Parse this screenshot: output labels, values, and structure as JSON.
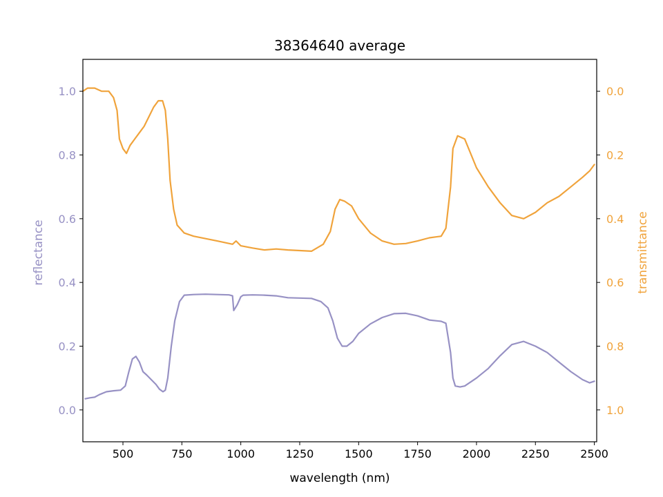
{
  "chart_data": {
    "type": "line",
    "title": "38364640 average",
    "xlabel": "wavelength (nm)",
    "ylabel_left": "reflectance",
    "ylabel_right": "transmittance",
    "xlim": [
      330,
      2510
    ],
    "ylim_left": [
      -0.1,
      1.1
    ],
    "ylim_right": [
      1.1,
      -0.1
    ],
    "right_axis_inverted": true,
    "grid": false,
    "x_ticks": [
      {
        "value": 500,
        "label": "500"
      },
      {
        "value": 750,
        "label": "750"
      },
      {
        "value": 1000,
        "label": "1000"
      },
      {
        "value": 1250,
        "label": "1250"
      },
      {
        "value": 1500,
        "label": "1500"
      },
      {
        "value": 1750,
        "label": "1750"
      },
      {
        "value": 2000,
        "label": "2000"
      },
      {
        "value": 2250,
        "label": "2250"
      },
      {
        "value": 2500,
        "label": "2500"
      }
    ],
    "y_ticks_left": [
      {
        "value": 0.0,
        "label": "0.0"
      },
      {
        "value": 0.2,
        "label": "0.2"
      },
      {
        "value": 0.4,
        "label": "0.4"
      },
      {
        "value": 0.6,
        "label": "0.6"
      },
      {
        "value": 0.8,
        "label": "0.8"
      },
      {
        "value": 1.0,
        "label": "1.0"
      }
    ],
    "y_ticks_right": [
      {
        "value": 0.0,
        "label": "0.0"
      },
      {
        "value": 0.2,
        "label": "0.2"
      },
      {
        "value": 0.4,
        "label": "0.4"
      },
      {
        "value": 0.6,
        "label": "0.6"
      },
      {
        "value": 0.8,
        "label": "0.8"
      },
      {
        "value": 1.0,
        "label": "1.0"
      }
    ],
    "series": [
      {
        "axis": "left",
        "color": "#9791c4",
        "points": [
          [
            340,
            0.035
          ],
          [
            360,
            0.038
          ],
          [
            380,
            0.04
          ],
          [
            400,
            0.048
          ],
          [
            430,
            0.057
          ],
          [
            460,
            0.06
          ],
          [
            490,
            0.062
          ],
          [
            510,
            0.075
          ],
          [
            525,
            0.12
          ],
          [
            540,
            0.16
          ],
          [
            555,
            0.168
          ],
          [
            570,
            0.15
          ],
          [
            585,
            0.12
          ],
          [
            600,
            0.11
          ],
          [
            620,
            0.095
          ],
          [
            640,
            0.08
          ],
          [
            655,
            0.065
          ],
          [
            670,
            0.057
          ],
          [
            680,
            0.062
          ],
          [
            690,
            0.1
          ],
          [
            705,
            0.2
          ],
          [
            720,
            0.28
          ],
          [
            740,
            0.34
          ],
          [
            760,
            0.36
          ],
          [
            800,
            0.362
          ],
          [
            850,
            0.363
          ],
          [
            900,
            0.362
          ],
          [
            950,
            0.361
          ],
          [
            965,
            0.358
          ],
          [
            970,
            0.312
          ],
          [
            985,
            0.33
          ],
          [
            1000,
            0.355
          ],
          [
            1010,
            0.36
          ],
          [
            1050,
            0.361
          ],
          [
            1100,
            0.36
          ],
          [
            1150,
            0.358
          ],
          [
            1200,
            0.352
          ],
          [
            1250,
            0.351
          ],
          [
            1300,
            0.35
          ],
          [
            1340,
            0.34
          ],
          [
            1370,
            0.32
          ],
          [
            1390,
            0.28
          ],
          [
            1410,
            0.225
          ],
          [
            1430,
            0.2
          ],
          [
            1450,
            0.2
          ],
          [
            1475,
            0.215
          ],
          [
            1500,
            0.24
          ],
          [
            1550,
            0.27
          ],
          [
            1600,
            0.29
          ],
          [
            1650,
            0.302
          ],
          [
            1700,
            0.303
          ],
          [
            1750,
            0.295
          ],
          [
            1800,
            0.282
          ],
          [
            1850,
            0.278
          ],
          [
            1870,
            0.272
          ],
          [
            1890,
            0.18
          ],
          [
            1900,
            0.1
          ],
          [
            1910,
            0.075
          ],
          [
            1930,
            0.072
          ],
          [
            1950,
            0.075
          ],
          [
            2000,
            0.1
          ],
          [
            2050,
            0.13
          ],
          [
            2100,
            0.17
          ],
          [
            2150,
            0.205
          ],
          [
            2200,
            0.215
          ],
          [
            2250,
            0.2
          ],
          [
            2300,
            0.18
          ],
          [
            2350,
            0.15
          ],
          [
            2400,
            0.12
          ],
          [
            2450,
            0.095
          ],
          [
            2480,
            0.085
          ],
          [
            2500,
            0.09
          ]
        ]
      },
      {
        "axis": "right",
        "color": "#f0a33b",
        "points": [
          [
            330,
            0.0
          ],
          [
            350,
            -0.01
          ],
          [
            380,
            -0.01
          ],
          [
            410,
            0.0
          ],
          [
            440,
            0.0
          ],
          [
            460,
            0.02
          ],
          [
            475,
            0.06
          ],
          [
            485,
            0.15
          ],
          [
            500,
            0.18
          ],
          [
            515,
            0.195
          ],
          [
            530,
            0.17
          ],
          [
            550,
            0.15
          ],
          [
            570,
            0.13
          ],
          [
            590,
            0.11
          ],
          [
            610,
            0.08
          ],
          [
            630,
            0.05
          ],
          [
            650,
            0.03
          ],
          [
            668,
            0.03
          ],
          [
            680,
            0.06
          ],
          [
            690,
            0.15
          ],
          [
            700,
            0.28
          ],
          [
            715,
            0.37
          ],
          [
            730,
            0.42
          ],
          [
            760,
            0.445
          ],
          [
            800,
            0.455
          ],
          [
            900,
            0.47
          ],
          [
            965,
            0.48
          ],
          [
            980,
            0.47
          ],
          [
            1000,
            0.485
          ],
          [
            1050,
            0.492
          ],
          [
            1100,
            0.498
          ],
          [
            1150,
            0.495
          ],
          [
            1200,
            0.498
          ],
          [
            1250,
            0.5
          ],
          [
            1300,
            0.502
          ],
          [
            1350,
            0.48
          ],
          [
            1380,
            0.44
          ],
          [
            1400,
            0.37
          ],
          [
            1420,
            0.34
          ],
          [
            1440,
            0.345
          ],
          [
            1470,
            0.36
          ],
          [
            1500,
            0.4
          ],
          [
            1550,
            0.445
          ],
          [
            1600,
            0.47
          ],
          [
            1650,
            0.48
          ],
          [
            1700,
            0.478
          ],
          [
            1750,
            0.47
          ],
          [
            1800,
            0.46
          ],
          [
            1850,
            0.455
          ],
          [
            1870,
            0.43
          ],
          [
            1890,
            0.3
          ],
          [
            1900,
            0.18
          ],
          [
            1920,
            0.14
          ],
          [
            1950,
            0.15
          ],
          [
            2000,
            0.24
          ],
          [
            2050,
            0.3
          ],
          [
            2100,
            0.35
          ],
          [
            2150,
            0.39
          ],
          [
            2200,
            0.4
          ],
          [
            2250,
            0.38
          ],
          [
            2300,
            0.35
          ],
          [
            2350,
            0.33
          ],
          [
            2400,
            0.3
          ],
          [
            2450,
            0.27
          ],
          [
            2480,
            0.25
          ],
          [
            2500,
            0.23
          ]
        ]
      }
    ]
  }
}
